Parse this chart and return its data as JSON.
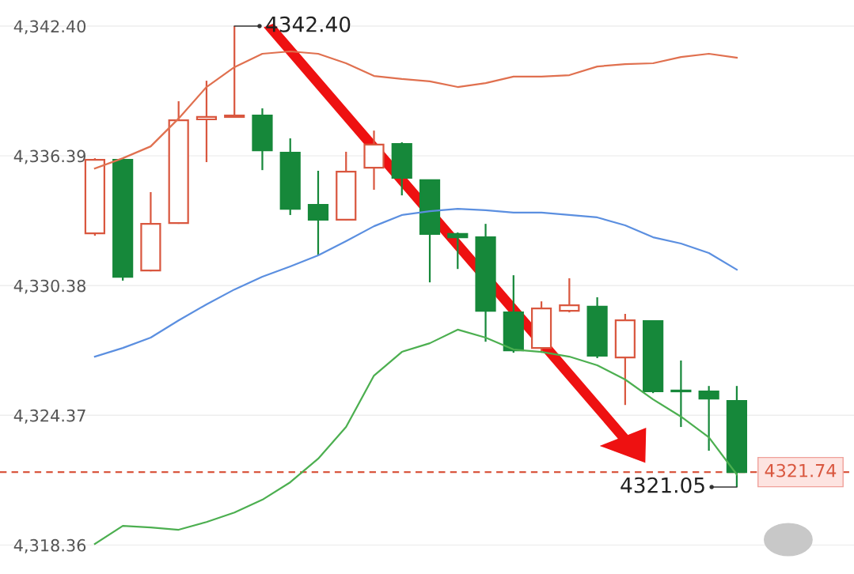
{
  "chart_data": {
    "type": "candlestick",
    "categories": [
      null,
      null,
      null,
      null,
      null,
      null,
      null,
      null,
      null,
      null,
      null,
      null,
      null,
      null,
      null,
      null,
      null,
      null,
      null,
      null,
      null,
      null,
      null,
      null
    ],
    "ohlc": [
      [
        4332.8,
        4336.28,
        4332.69,
        4336.21
      ],
      [
        4336.21,
        4336.28,
        4330.61,
        4330.79
      ],
      [
        4331.08,
        4334.71,
        4331.04,
        4333.24
      ],
      [
        4333.28,
        4338.92,
        4333.24,
        4338.04
      ],
      [
        4338.08,
        4339.87,
        4336.1,
        4338.19
      ],
      [
        4338.19,
        4342.4,
        4338.19,
        4338.26
      ],
      [
        4338.26,
        4338.59,
        4335.73,
        4336.65
      ],
      [
        4336.54,
        4337.2,
        4333.65,
        4333.94
      ],
      [
        4334.12,
        4335.7,
        4331.78,
        4333.43
      ],
      [
        4333.43,
        4336.58,
        4333.39,
        4335.66
      ],
      [
        4335.84,
        4337.56,
        4334.82,
        4336.91
      ],
      [
        4336.94,
        4337.02,
        4334.56,
        4335.37
      ],
      [
        4335.26,
        4335.26,
        4330.53,
        4332.77
      ],
      [
        4332.77,
        4332.84,
        4331.15,
        4332.62
      ],
      [
        4332.62,
        4333.24,
        4327.78,
        4329.21
      ],
      [
        4329.14,
        4330.86,
        4327.27,
        4327.38
      ],
      [
        4327.49,
        4329.65,
        4327.27,
        4329.32
      ],
      [
        4329.21,
        4330.72,
        4329.14,
        4329.47
      ],
      [
        4329.4,
        4329.84,
        4327.02,
        4327.13
      ],
      [
        4327.05,
        4329.07,
        4324.85,
        4328.77
      ],
      [
        4328.74,
        4328.74,
        4325.4,
        4325.48
      ],
      [
        4325.51,
        4326.91,
        4323.83,
        4325.48
      ],
      [
        4325.48,
        4325.73,
        4322.73,
        4325.15
      ],
      [
        4325.04,
        4325.73,
        4321.05,
        4321.74
      ]
    ],
    "colors": [
      "#d9573f",
      "#16883a",
      "#d9573f",
      "#d9573f",
      "#d9573f",
      "#d9573f",
      "#16883a",
      "#16883a",
      "#16883a",
      "#d9573f",
      "#d9573f",
      "#16883a",
      "#16883a",
      "#16883a",
      "#16883a",
      "#16883a",
      "#d9573f",
      "#d9573f",
      "#16883a",
      "#d9573f",
      "#16883a",
      "#16883a",
      "#16883a",
      "#16883a"
    ],
    "series": [
      {
        "type": "line",
        "color": "#e0704f",
        "values": [
          4335.81,
          4336.28,
          4336.83,
          4338.12,
          4339.58,
          4340.5,
          4341.12,
          4341.23,
          4341.12,
          4340.68,
          4340.09,
          4339.95,
          4339.84,
          4339.58,
          4339.76,
          4340.06,
          4340.06,
          4340.13,
          4340.53,
          4340.64,
          4340.68,
          4340.97,
          4341.12,
          4340.94
        ]
      },
      {
        "type": "line",
        "color": "#5b8fe0",
        "values": [
          4327.09,
          4327.49,
          4327.97,
          4328.77,
          4329.51,
          4330.2,
          4330.79,
          4331.27,
          4331.78,
          4332.44,
          4333.13,
          4333.65,
          4333.83,
          4333.94,
          4333.87,
          4333.76,
          4333.76,
          4333.65,
          4333.54,
          4333.17,
          4332.62,
          4332.33,
          4331.89,
          4331.12
        ]
      },
      {
        "type": "line",
        "color": "#4caf50",
        "values": [
          4318.41,
          4319.25,
          4319.18,
          4319.07,
          4319.43,
          4319.87,
          4320.46,
          4321.27,
          4322.36,
          4323.83,
          4326.21,
          4327.31,
          4327.71,
          4328.34,
          4327.97,
          4327.42,
          4327.31,
          4327.09,
          4326.69,
          4326.03,
          4325.11,
          4324.31,
          4323.35,
          4321.63
        ]
      }
    ],
    "ylim": [
      4317.02,
      4343.61
    ],
    "yticks": [
      {
        "value": 4342.4,
        "label": "4,342.40"
      },
      {
        "value": 4336.39,
        "label": "4,336.39"
      },
      {
        "value": 4330.38,
        "label": "4,330.38"
      },
      {
        "value": 4324.37,
        "label": "4,324.37"
      },
      {
        "value": 4318.36,
        "label": "4,318.36"
      }
    ],
    "tick_labels": "y",
    "grid": "y",
    "ref_lines": [
      {
        "axis": "y",
        "value": 4321.74,
        "label": "4321.74",
        "color": "#d9573f",
        "line_style": "dashed"
      }
    ],
    "annotations": [
      "4342.40",
      "4321.05"
    ]
  }
}
